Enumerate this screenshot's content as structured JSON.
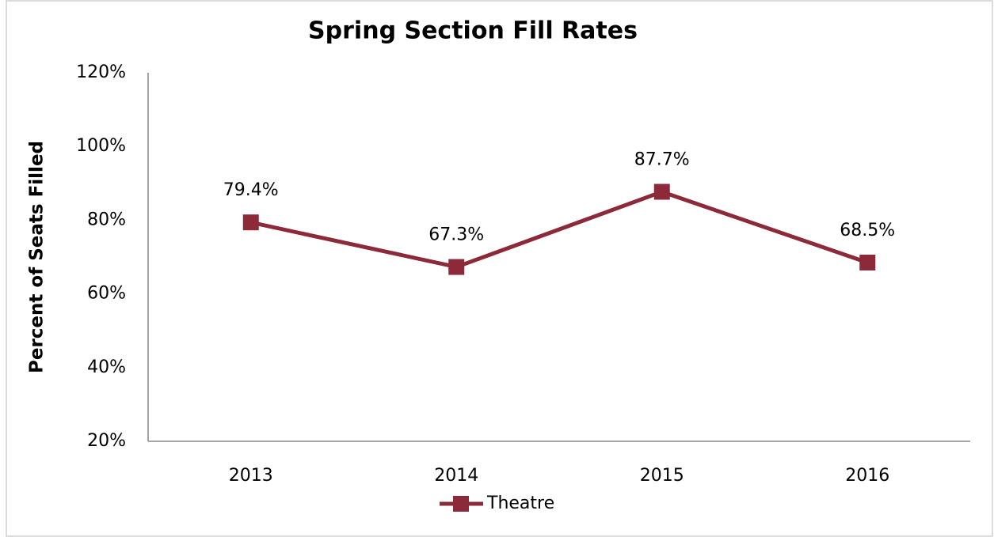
{
  "chart_data": {
    "type": "line",
    "title": "Spring Section Fill Rates",
    "y_label": "Percent of Seats Filled",
    "categories": [
      "2013",
      "2014",
      "2015",
      "2016"
    ],
    "series": [
      {
        "name": "Theatre",
        "color": "#8c2a3a",
        "values": [
          79.4,
          67.3,
          87.7,
          68.5
        ],
        "value_labels": [
          "79.4%",
          "67.3%",
          "87.7%",
          "68.5%"
        ]
      }
    ],
    "ylim": [
      20,
      120
    ],
    "yticks": [
      {
        "value": 20,
        "label": "20%"
      },
      {
        "value": 40,
        "label": "40%"
      },
      {
        "value": 60,
        "label": "60%"
      },
      {
        "value": 80,
        "label": "80%"
      },
      {
        "value": 100,
        "label": "100%"
      },
      {
        "value": 120,
        "label": "120%"
      }
    ],
    "grid": false,
    "legend": "bottom"
  }
}
